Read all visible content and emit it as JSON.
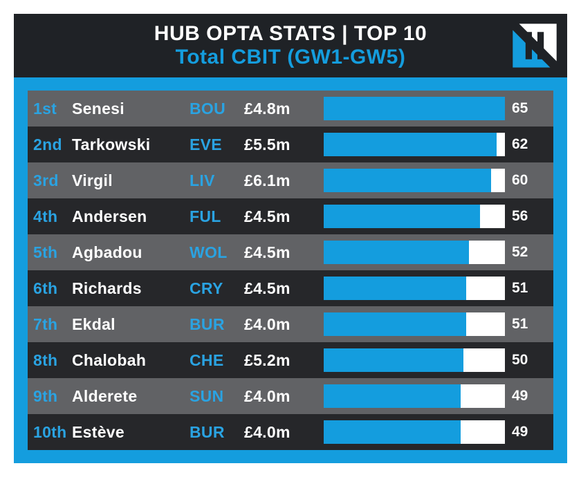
{
  "header": {
    "title": "HUB OPTA STATS | TOP 10",
    "subtitle": "Total CBIT (GW1-GW5)"
  },
  "colors": {
    "accent_blue": "#149dde",
    "header_dark": "#1f2226",
    "row_dark": "#26272a",
    "row_gray": "#616265",
    "text_white": "#ffffff",
    "rank_team_blue": "#2aa3e2",
    "bar_track_white": "#ffffff",
    "page_background": "#ffffff"
  },
  "chart_data": {
    "type": "bar",
    "title": "HUB OPTA STATS | TOP 10",
    "subtitle": "Total CBIT (GW1-GW5)",
    "orientation": "horizontal",
    "max_value": 65,
    "value_range": [
      0,
      65
    ],
    "rows": [
      {
        "rank": "1st",
        "player": "Senesi",
        "team": "BOU",
        "price": "£4.8m",
        "value": 65
      },
      {
        "rank": "2nd",
        "player": "Tarkowski",
        "team": "EVE",
        "price": "£5.5m",
        "value": 62
      },
      {
        "rank": "3rd",
        "player": "Virgil",
        "team": "LIV",
        "price": "£6.1m",
        "value": 60
      },
      {
        "rank": "4th",
        "player": "Andersen",
        "team": "FUL",
        "price": "£4.5m",
        "value": 56
      },
      {
        "rank": "5th",
        "player": "Agbadou",
        "team": "WOL",
        "price": "£4.5m",
        "value": 52
      },
      {
        "rank": "6th",
        "player": "Richards",
        "team": "CRY",
        "price": "£4.5m",
        "value": 51
      },
      {
        "rank": "7th",
        "player": "Ekdal",
        "team": "BUR",
        "price": "£4.0m",
        "value": 51
      },
      {
        "rank": "8th",
        "player": "Chalobah",
        "team": "CHE",
        "price": "£5.2m",
        "value": 50
      },
      {
        "rank": "9th",
        "player": "Alderete",
        "team": "SUN",
        "price": "£4.0m",
        "value": 49
      },
      {
        "rank": "10th",
        "player": "Estève",
        "team": "BUR",
        "price": "£4.0m",
        "value": 49
      }
    ]
  }
}
